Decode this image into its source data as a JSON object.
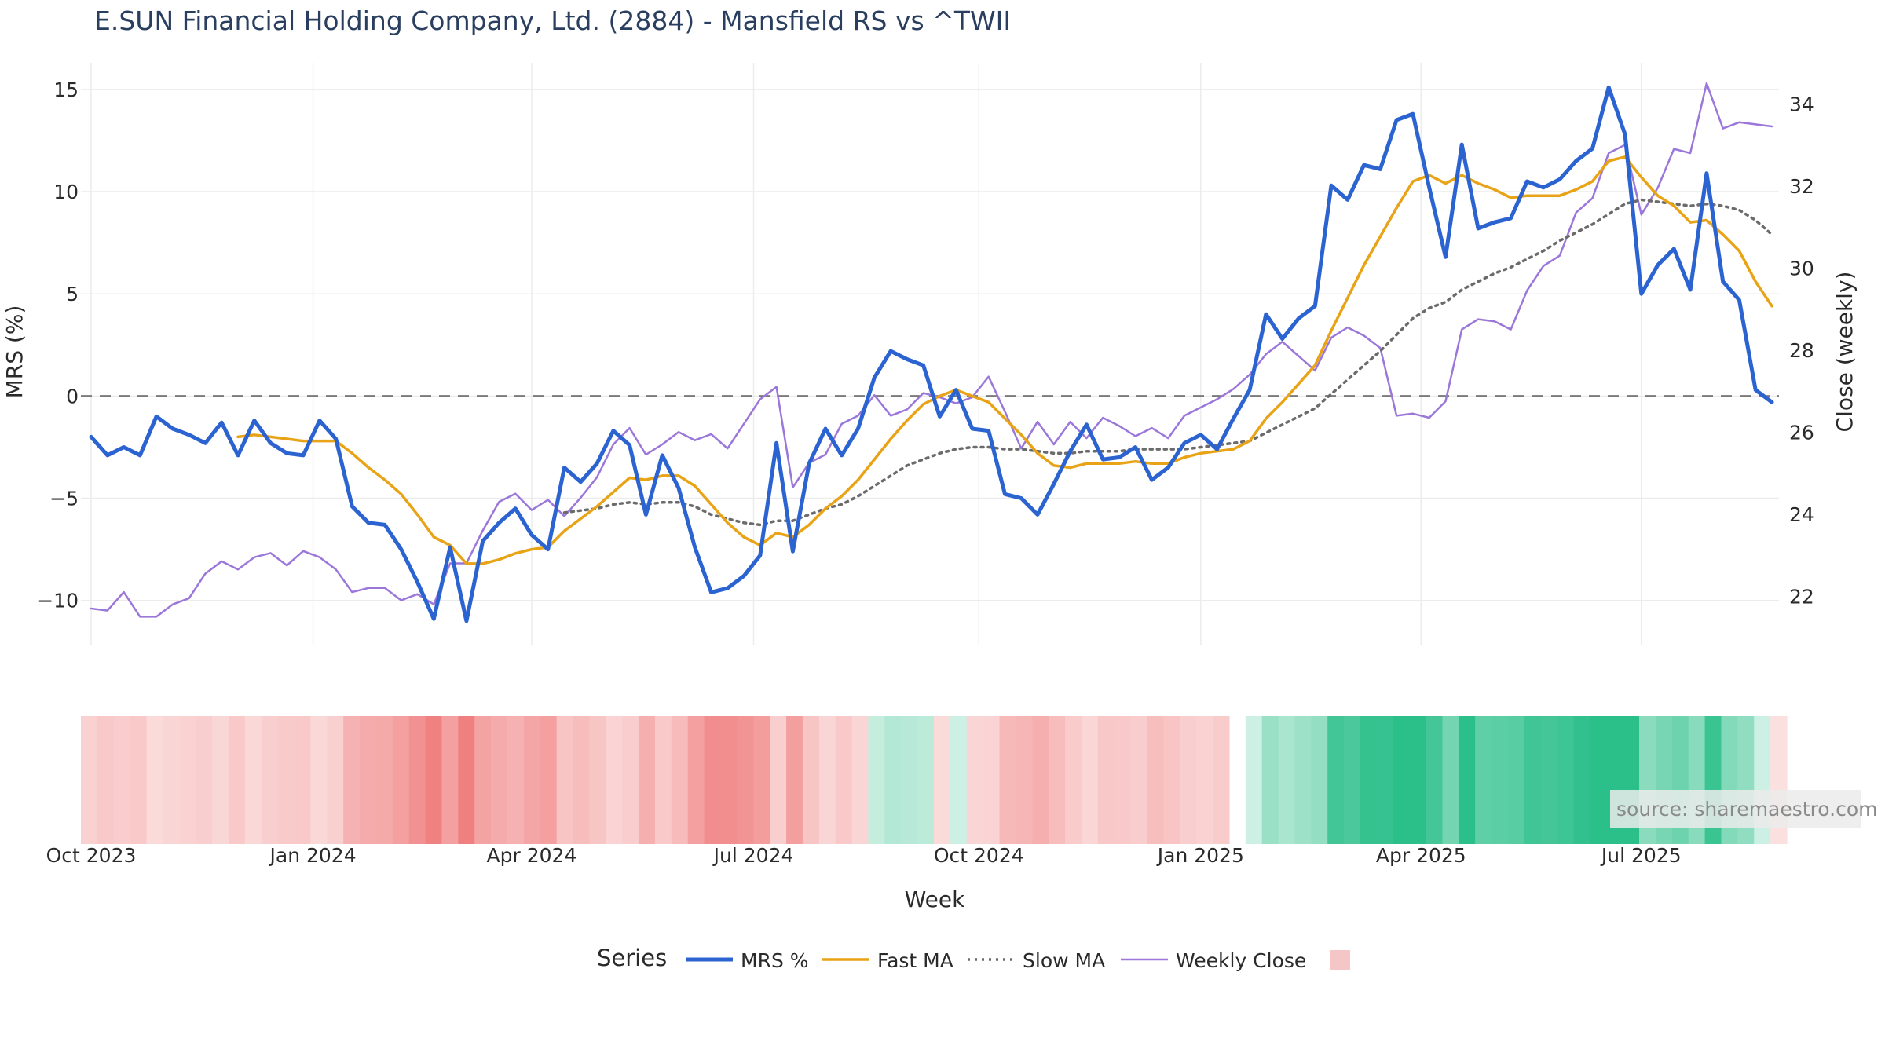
{
  "chart_data": {
    "type": "line",
    "title": "E.SUN Financial Holding Company, Ltd. (2884) - Mansfield RS vs ^TWII",
    "xlabel": "Week",
    "ylabel_left": "MRS (%)",
    "ylabel_right": "Close (weekly)",
    "x_tick_labels": [
      "Oct 2023",
      "Jan 2024",
      "Apr 2024",
      "Jul 2024",
      "Oct 2024",
      "Jan 2025",
      "Apr 2025",
      "Jul 2025"
    ],
    "y_left_ticks": [
      15,
      10,
      5,
      0,
      -5,
      -10
    ],
    "y_left_tick_labels": [
      "15",
      "10",
      "5",
      "0",
      "−5",
      "−10"
    ],
    "y_left_range": [
      -12.2,
      16.3
    ],
    "y_right_ticks": [
      22,
      24,
      26,
      28,
      30,
      32,
      34
    ],
    "y_right_tick_labels": [
      "22",
      "24",
      "26",
      "28",
      "30",
      "32",
      "34"
    ],
    "y_right_range": [
      20.8,
      35.0
    ],
    "reference_line": 0,
    "grid": true,
    "legend_position": "bottom",
    "legend_title": "Series",
    "source_note": "source: sharemaestro.com",
    "colors": {
      "mrs": "#2b63d1",
      "fast_ma": "#e8a317",
      "slow_ma": "#6b6b6b",
      "weekly_close": "#9b77d9",
      "zero_line": "#7a7a7a",
      "heat_negative": "#f08080",
      "heat_positive": "#2bbf8a",
      "heat_legend_swatch": "#f5c6c6"
    },
    "series": [
      {
        "name": "MRS %",
        "axis": "left",
        "values": [
          -2.0,
          -2.9,
          -2.5,
          -2.9,
          -1.0,
          -1.6,
          -1.9,
          -2.3,
          -1.3,
          -2.9,
          -1.2,
          -2.3,
          -2.8,
          -2.9,
          -1.2,
          -2.1,
          -5.4,
          -6.2,
          -6.3,
          -7.5,
          -9.1,
          -10.9,
          -7.4,
          -11.0,
          -7.1,
          -6.2,
          -5.5,
          -6.8,
          -7.5,
          -3.5,
          -4.2,
          -3.3,
          -1.7,
          -2.4,
          -5.8,
          -2.9,
          -4.5,
          -7.4,
          -9.6,
          -9.4,
          -8.8,
          -7.8,
          -2.3,
          -7.6,
          -3.3,
          -1.6,
          -2.9,
          -1.6,
          0.9,
          2.2,
          1.8,
          1.5,
          -1.0,
          0.3,
          -1.6,
          -1.7,
          -4.8,
          -5.0,
          -5.8,
          -4.3,
          -2.7,
          -1.4,
          -3.1,
          -3.0,
          -2.5,
          -4.1,
          -3.5,
          -2.3,
          -1.9,
          -2.6,
          -1.1,
          0.3,
          4.0,
          2.8,
          3.8,
          4.4,
          10.3,
          9.6,
          11.3,
          11.1,
          13.5,
          13.8,
          10.2,
          6.8,
          12.3,
          8.2,
          8.5,
          8.7,
          10.5,
          10.2,
          10.6,
          11.5,
          12.1,
          15.1,
          12.8,
          5.0,
          6.4,
          7.2,
          5.2,
          10.9,
          5.6,
          4.7,
          0.3,
          -0.3
        ]
      },
      {
        "name": "Fast MA",
        "axis": "left",
        "values": [
          null,
          null,
          null,
          null,
          null,
          null,
          null,
          null,
          null,
          -2.0,
          -1.9,
          -2.0,
          -2.1,
          -2.2,
          -2.2,
          -2.2,
          -2.8,
          -3.5,
          -4.1,
          -4.8,
          -5.8,
          -6.9,
          -7.3,
          -8.2,
          -8.2,
          -8.0,
          -7.7,
          -7.5,
          -7.4,
          -6.6,
          -6.0,
          -5.4,
          -4.7,
          -4.0,
          -4.1,
          -3.9,
          -3.9,
          -4.4,
          -5.3,
          -6.2,
          -6.9,
          -7.3,
          -6.7,
          -6.9,
          -6.3,
          -5.5,
          -4.9,
          -4.1,
          -3.1,
          -2.1,
          -1.2,
          -0.4,
          0.0,
          0.3,
          0.0,
          -0.3,
          -1.1,
          -1.9,
          -2.8,
          -3.4,
          -3.5,
          -3.3,
          -3.3,
          -3.3,
          -3.2,
          -3.3,
          -3.3,
          -3.0,
          -2.8,
          -2.7,
          -2.6,
          -2.2,
          -1.1,
          -0.3,
          0.6,
          1.5,
          3.2,
          4.8,
          6.4,
          7.8,
          9.2,
          10.5,
          10.8,
          10.4,
          10.8,
          10.4,
          10.1,
          9.7,
          9.8,
          9.8,
          9.8,
          10.1,
          10.5,
          11.5,
          11.7,
          10.7,
          9.8,
          9.3,
          8.5,
          8.6,
          7.9,
          7.1,
          5.6,
          4.4
        ]
      },
      {
        "name": "Slow MA",
        "axis": "left",
        "values": [
          null,
          null,
          null,
          null,
          null,
          null,
          null,
          null,
          null,
          null,
          null,
          null,
          null,
          null,
          null,
          null,
          null,
          null,
          null,
          null,
          null,
          null,
          null,
          null,
          null,
          null,
          null,
          null,
          null,
          -5.7,
          -5.6,
          -5.5,
          -5.3,
          -5.2,
          -5.3,
          -5.2,
          -5.2,
          -5.4,
          -5.8,
          -6.0,
          -6.2,
          -6.3,
          -6.1,
          -6.1,
          -5.8,
          -5.5,
          -5.3,
          -4.9,
          -4.4,
          -3.9,
          -3.4,
          -3.1,
          -2.8,
          -2.6,
          -2.5,
          -2.5,
          -2.6,
          -2.6,
          -2.7,
          -2.8,
          -2.8,
          -2.7,
          -2.7,
          -2.7,
          -2.6,
          -2.6,
          -2.6,
          -2.6,
          -2.5,
          -2.4,
          -2.3,
          -2.2,
          -1.8,
          -1.4,
          -1.0,
          -0.6,
          0.1,
          0.8,
          1.5,
          2.2,
          3.0,
          3.8,
          4.3,
          4.6,
          5.2,
          5.6,
          6.0,
          6.3,
          6.7,
          7.1,
          7.6,
          8.0,
          8.4,
          8.9,
          9.4,
          9.6,
          9.5,
          9.4,
          9.3,
          9.4,
          9.3,
          9.1,
          8.6,
          7.9
        ]
      },
      {
        "name": "Weekly Close",
        "axis": "right",
        "values": [
          21.7,
          21.65,
          22.1,
          21.5,
          21.5,
          21.8,
          21.95,
          22.55,
          22.85,
          22.65,
          22.95,
          23.05,
          22.75,
          23.1,
          22.95,
          22.65,
          22.1,
          22.2,
          22.2,
          21.9,
          22.05,
          21.8,
          22.8,
          22.8,
          23.6,
          24.3,
          24.5,
          24.1,
          24.35,
          23.95,
          24.4,
          24.9,
          25.7,
          26.1,
          25.45,
          25.7,
          26.0,
          25.8,
          25.95,
          25.6,
          26.2,
          26.8,
          27.1,
          24.65,
          25.25,
          25.45,
          26.2,
          26.4,
          26.9,
          26.4,
          26.55,
          26.95,
          26.85,
          26.7,
          26.85,
          27.35,
          26.5,
          25.6,
          26.25,
          25.7,
          26.25,
          25.85,
          26.35,
          26.15,
          25.9,
          26.1,
          25.85,
          26.4,
          26.6,
          26.8,
          27.05,
          27.4,
          27.9,
          28.2,
          27.85,
          27.5,
          28.3,
          28.55,
          28.35,
          28.05,
          26.4,
          26.45,
          26.35,
          26.75,
          28.5,
          28.75,
          28.7,
          28.5,
          29.45,
          30.05,
          30.3,
          31.35,
          31.7,
          32.8,
          33.0,
          31.3,
          31.95,
          32.9,
          32.8,
          34.5,
          33.4,
          33.55,
          33.5,
          33.45
        ]
      }
    ],
    "heatmap_strip": {
      "description_of_scale": "red = negative MRS, green = positive MRS",
      "values": [
        -2.0,
        -2.9,
        -2.5,
        -2.9,
        -1.0,
        -1.6,
        -1.9,
        -2.3,
        -1.3,
        -2.9,
        -1.2,
        -2.3,
        -2.8,
        -2.9,
        -1.2,
        -2.1,
        -5.4,
        -6.2,
        -6.3,
        -7.5,
        -9.1,
        -10.9,
        -7.4,
        -11.0,
        -7.1,
        -6.2,
        -5.5,
        -6.8,
        -7.5,
        -3.5,
        -4.2,
        -3.3,
        -1.7,
        -2.4,
        -5.8,
        -2.9,
        -4.5,
        -7.4,
        -9.6,
        -9.4,
        -8.8,
        -7.8,
        -2.3,
        -7.6,
        -3.3,
        -1.6,
        -2.9,
        -1.6,
        0.9,
        2.2,
        1.8,
        1.5,
        -1.0,
        0.3,
        -1.6,
        -1.7,
        -4.8,
        -5.0,
        -5.8,
        -4.3,
        -2.7,
        -1.4,
        -3.1,
        -3.0,
        -2.5,
        -4.1,
        -3.5,
        -2.3,
        -1.9,
        -2.6,
        null,
        0.3,
        4.0,
        2.8,
        3.8,
        4.4,
        10.3,
        9.6,
        11.3,
        11.1,
        13.5,
        13.8,
        10.2,
        6.8,
        12.3,
        8.2,
        8.5,
        8.7,
        10.5,
        10.2,
        10.6,
        11.5,
        12.1,
        15.1,
        12.8,
        5.0,
        6.4,
        7.2,
        5.2,
        10.9,
        5.6,
        4.7,
        0.3,
        -0.3
      ]
    }
  }
}
